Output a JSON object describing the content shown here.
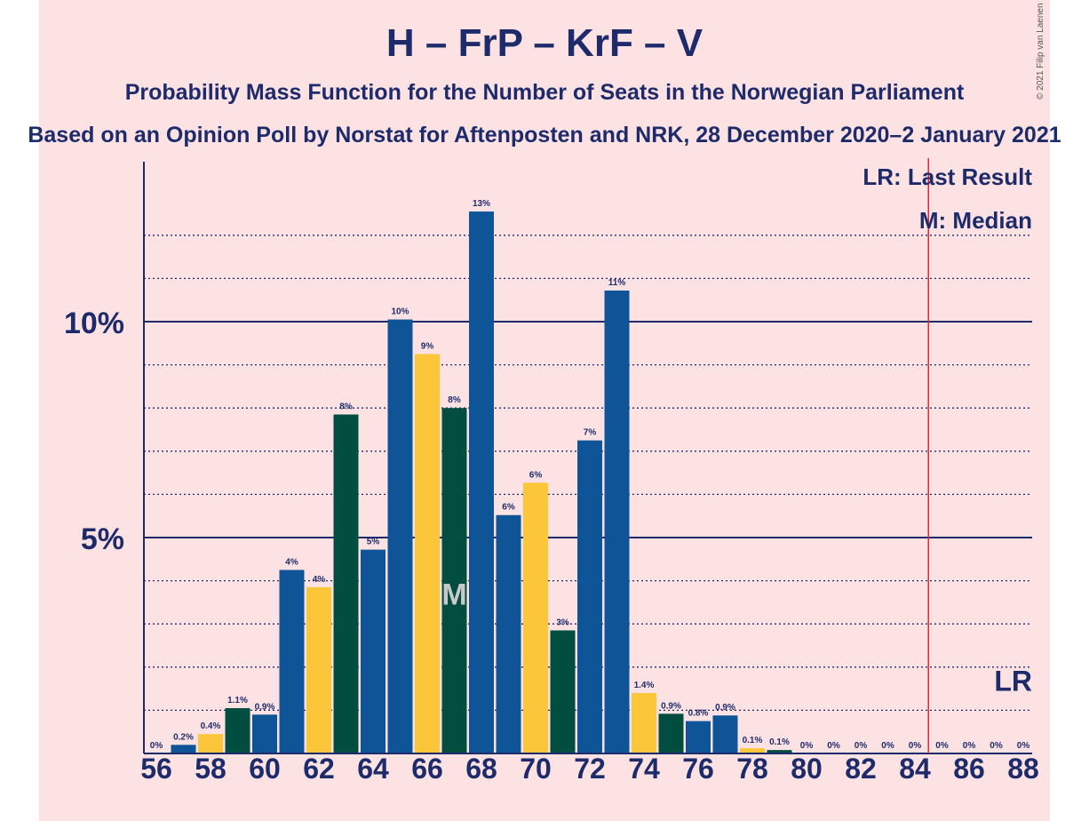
{
  "header": {
    "title": "H – FrP – KrF – V",
    "subtitle": "Probability Mass Function for the Number of Seats in the Norwegian Parliament",
    "source": "Based on an Opinion Poll by Norstat for Aftenposten and NRK, 28 December 2020–2 January 2021",
    "copyright": "© 2021 Filip van Laenen"
  },
  "legend": {
    "last_result": "LR: Last Result",
    "median": "M: Median"
  },
  "colors": {
    "background": "#fde2e4",
    "H": "#0f5496",
    "FrP": "#fcc63b",
    "KrF": "#014d40",
    "text": "#1d2b6b",
    "last_result_line": "#e0263a"
  },
  "chart_data": {
    "type": "bar",
    "ylim": [
      0,
      13.6
    ],
    "y_ticks": [
      {
        "value": 5,
        "label": "5%"
      },
      {
        "value": 10,
        "label": "10%"
      }
    ],
    "minor_gridlines": [
      1,
      2,
      3,
      4,
      6,
      7,
      8,
      9,
      11,
      12
    ],
    "x_tick_labels": [
      "56",
      "58",
      "60",
      "62",
      "64",
      "66",
      "68",
      "70",
      "72",
      "74",
      "76",
      "78",
      "80",
      "82",
      "84",
      "86",
      "88"
    ],
    "x_tick_values": [
      56,
      58,
      60,
      62,
      64,
      66,
      68,
      70,
      72,
      74,
      76,
      78,
      80,
      82,
      84,
      86,
      88
    ],
    "bars": [
      {
        "seats": 56,
        "value": 0,
        "label": "0%",
        "party": "H"
      },
      {
        "seats": 57,
        "value": 0.2,
        "label": "0.2%",
        "party": "H"
      },
      {
        "seats": 58,
        "value": 0.45,
        "label": "0.4%",
        "party": "FrP"
      },
      {
        "seats": 59,
        "value": 1.05,
        "label": "1.1%",
        "party": "KrF"
      },
      {
        "seats": 60,
        "value": 0.9,
        "label": "0.9%",
        "party": "H"
      },
      {
        "seats": 61,
        "value": 4.25,
        "label": "4%",
        "party": "H"
      },
      {
        "seats": 62,
        "value": 3.85,
        "label": "4%",
        "party": "FrP"
      },
      {
        "seats": 63,
        "value": 7.85,
        "label": "8%",
        "party": "KrF"
      },
      {
        "seats": 64,
        "value": 4.72,
        "label": "5%",
        "party": "H"
      },
      {
        "seats": 65,
        "value": 10.05,
        "label": "10%",
        "party": "H"
      },
      {
        "seats": 66,
        "value": 9.25,
        "label": "9%",
        "party": "FrP"
      },
      {
        "seats": 67,
        "value": 8.0,
        "label": "8%",
        "party": "KrF",
        "marker": "M"
      },
      {
        "seats": 68,
        "value": 12.55,
        "label": "13%",
        "party": "H"
      },
      {
        "seats": 69,
        "value": 5.52,
        "label": "6%",
        "party": "H"
      },
      {
        "seats": 70,
        "value": 6.27,
        "label": "6%",
        "party": "FrP"
      },
      {
        "seats": 71,
        "value": 2.85,
        "label": "3%",
        "party": "KrF"
      },
      {
        "seats": 72,
        "value": 7.25,
        "label": "7%",
        "party": "H"
      },
      {
        "seats": 73,
        "value": 10.72,
        "label": "11%",
        "party": "H"
      },
      {
        "seats": 74,
        "value": 1.4,
        "label": "1.4%",
        "party": "FrP"
      },
      {
        "seats": 75,
        "value": 0.92,
        "label": "0.9%",
        "party": "KrF"
      },
      {
        "seats": 76,
        "value": 0.75,
        "label": "0.8%",
        "party": "H"
      },
      {
        "seats": 77,
        "value": 0.88,
        "label": "0.9%",
        "party": "H"
      },
      {
        "seats": 78,
        "value": 0.12,
        "label": "0.1%",
        "party": "FrP"
      },
      {
        "seats": 79,
        "value": 0.08,
        "label": "0.1%",
        "party": "KrF"
      },
      {
        "seats": 80,
        "value": 0,
        "label": "0%",
        "party": "H"
      },
      {
        "seats": 81,
        "value": 0,
        "label": "0%",
        "party": "H"
      },
      {
        "seats": 82,
        "value": 0,
        "label": "0%",
        "party": "FrP"
      },
      {
        "seats": 83,
        "value": 0,
        "label": "0%",
        "party": "KrF"
      },
      {
        "seats": 84,
        "value": 0,
        "label": "0%",
        "party": "H"
      },
      {
        "seats": 85,
        "value": 0,
        "label": "0%",
        "party": "H"
      },
      {
        "seats": 86,
        "value": 0,
        "label": "0%",
        "party": "FrP"
      },
      {
        "seats": 87,
        "value": 0,
        "label": "0%",
        "party": "KrF"
      },
      {
        "seats": 88,
        "value": 0,
        "label": "0%",
        "party": "H"
      }
    ],
    "median_seats": 67,
    "median_marker": "M",
    "last_result_seats": 84.5,
    "last_result_marker": "LR"
  }
}
